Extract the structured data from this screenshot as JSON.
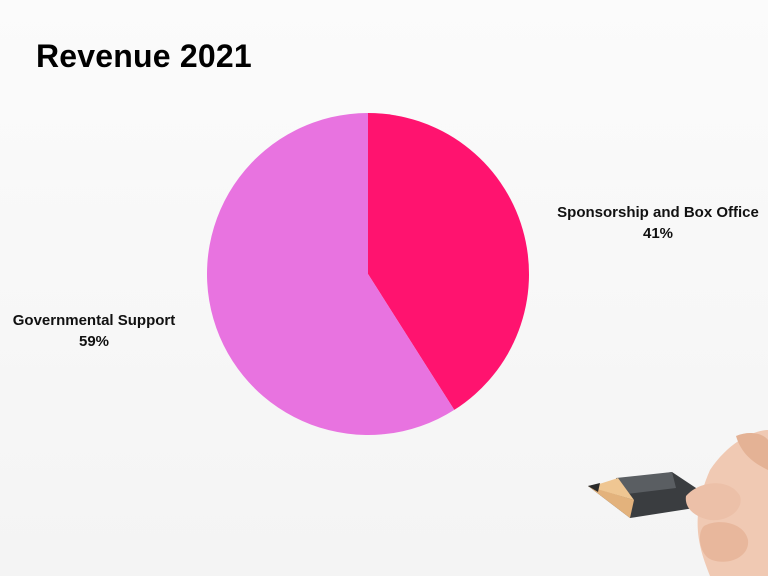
{
  "chart_data": {
    "type": "pie",
    "title": "Revenue 2021",
    "slices": [
      {
        "label": "Sponsorship and Box Office",
        "value": 41,
        "value_label": "41%",
        "color": "#ff136f"
      },
      {
        "label": "Governmental Support",
        "value": 59,
        "value_label": "59%",
        "color": "#e873e0"
      }
    ],
    "start_angle": "top",
    "direction": "clockwise"
  },
  "decoration": {
    "hand_with_pencil": "pencil-hand-icon"
  }
}
